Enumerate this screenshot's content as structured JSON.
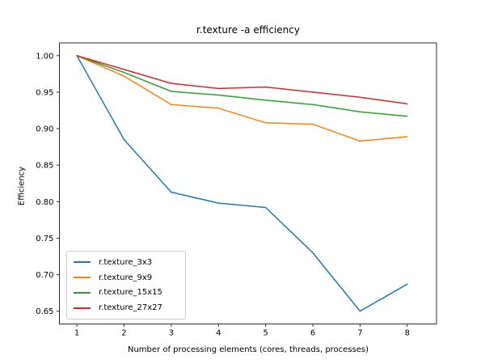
{
  "chart_data": {
    "type": "line",
    "title": "r.texture -a efficiency",
    "xlabel": "Number of processing elements (cores, threads, processes)",
    "ylabel": "Efficiency",
    "x": [
      1,
      2,
      3,
      4,
      5,
      6,
      7,
      8
    ],
    "xticks": [
      "1",
      "2",
      "3",
      "4",
      "5",
      "6",
      "7",
      "8"
    ],
    "yticks": [
      "0.65",
      "0.70",
      "0.75",
      "0.80",
      "0.85",
      "0.90",
      "0.95",
      "1.00"
    ],
    "xlim": [
      0.63,
      8.62
    ],
    "ylim": [
      0.6325,
      1.0175
    ],
    "grid": false,
    "legend_position": "lower left",
    "axis_color": "#2b2b2b",
    "series": [
      {
        "name": "r.texture_3x3",
        "color": "#1f77b4",
        "values": [
          1.0,
          0.885,
          0.813,
          0.798,
          0.792,
          0.73,
          0.65,
          0.687
        ]
      },
      {
        "name": "r.texture_9x9",
        "color": "#ff7f0e",
        "values": [
          1.0,
          0.972,
          0.933,
          0.928,
          0.908,
          0.906,
          0.883,
          0.889
        ]
      },
      {
        "name": "r.texture_15x15",
        "color": "#2ca02c",
        "values": [
          1.0,
          0.977,
          0.951,
          0.946,
          0.939,
          0.933,
          0.923,
          0.917
        ]
      },
      {
        "name": "r.texture_27x27",
        "color": "#d62728",
        "values": [
          1.0,
          0.981,
          0.962,
          0.955,
          0.957,
          0.95,
          0.943,
          0.934
        ]
      }
    ]
  }
}
